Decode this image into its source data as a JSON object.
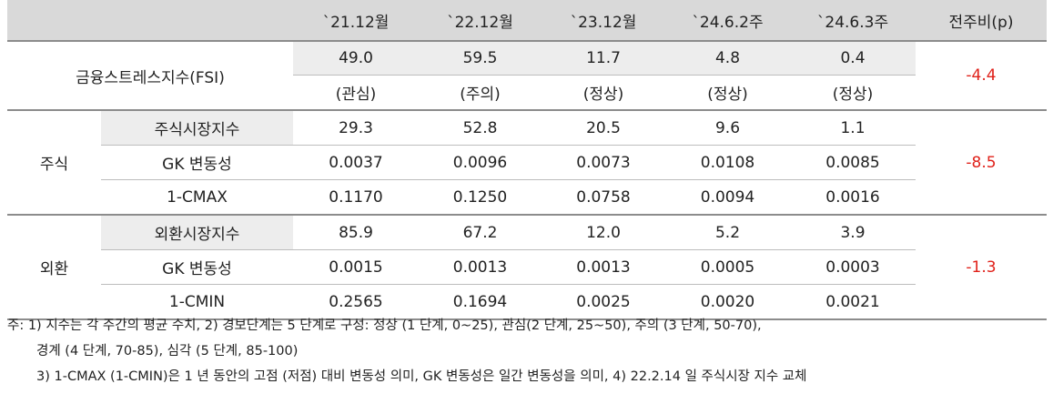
{
  "headers": [
    "",
    "",
    "`21.12월",
    "`22.12월",
    "`23.12월",
    "`24.6.2주",
    "`24.6.3주",
    "전주비(p)"
  ],
  "fsi": {
    "label": "금융스트레스지수(FSI)",
    "values": [
      "49.0",
      "59.5",
      "11.7",
      "4.8",
      "0.4"
    ],
    "states": [
      "(관심)",
      "(주의)",
      "(정상)",
      "(정상)",
      "(정상)"
    ],
    "wow": "-4.4"
  },
  "groups": [
    {
      "label": "주식",
      "wow": "-8.5",
      "rows": [
        {
          "label": "주식시장지수",
          "values": [
            "29.3",
            "52.8",
            "20.5",
            "9.6",
            "1.1"
          ]
        },
        {
          "label": "GK 변동성",
          "values": [
            "0.0037",
            "0.0096",
            "0.0073",
            "0.0108",
            "0.0085"
          ]
        },
        {
          "label": "1-CMAX",
          "values": [
            "0.1170",
            "0.1250",
            "0.0758",
            "0.0094",
            "0.0016"
          ]
        }
      ]
    },
    {
      "label": "외환",
      "wow": "-1.3",
      "rows": [
        {
          "label": "외환시장지수",
          "values": [
            "85.9",
            "67.2",
            "12.0",
            "5.2",
            "3.9"
          ]
        },
        {
          "label": "GK 변동성",
          "values": [
            "0.0015",
            "0.0013",
            "0.0013",
            "0.0005",
            "0.0003"
          ]
        },
        {
          "label": "1-CMIN",
          "values": [
            "0.2565",
            "0.1694",
            "0.0025",
            "0.0020",
            "0.0021"
          ]
        }
      ]
    }
  ],
  "notes": [
    "주: 1) 지수는 각 주간의 평균 수치, 2) 경보단계는 5 단계로 구성: 정상 (1 단계, 0~25), 관심(2 단계, 25~50), 주의 (3 단계, 50-70),",
    "경계 (4 단계, 70-85), 심각 (5 단계, 85-100)",
    "3) 1-CMAX (1-CMIN)은 1 년 동안의 고점 (저점) 대비 변동성 의미, GK 변동성은 일간 변동성을 의미, 4) 22.2.14 일 주식시장 지수 교체"
  ],
  "colors": {
    "header_bg": "#d9d9d9",
    "shade_bg": "#ededed",
    "negative": "#e0211a",
    "rule": "#8c8c8c"
  }
}
